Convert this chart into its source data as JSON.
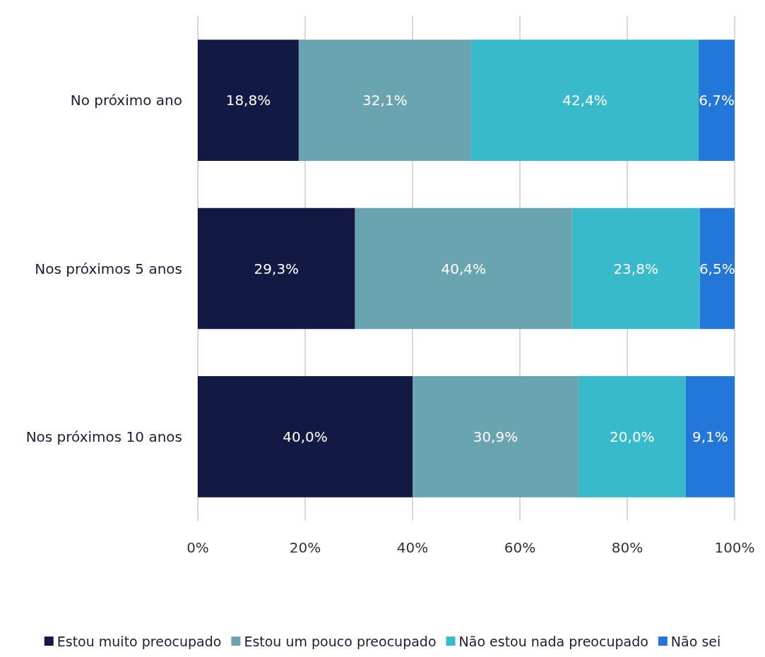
{
  "chart_data": {
    "type": "bar",
    "orientation": "horizontal",
    "stacked": true,
    "categories": [
      "No próximo ano",
      "Nos próximos 5 anos",
      "Nos próximos 10 anos"
    ],
    "series": [
      {
        "name": "Estou muito preocupado",
        "color": "#121a43",
        "values": [
          18.8,
          29.3,
          40.0
        ],
        "value_labels": [
          "18,8%",
          "29,3%",
          "40,0%"
        ]
      },
      {
        "name": "Estou um pouco preocupado",
        "color": "#6aa4b1",
        "values": [
          32.1,
          40.4,
          30.9
        ],
        "value_labels": [
          "32,1%",
          "40,4%",
          "30,9%"
        ]
      },
      {
        "name": "Não estou nada preocupado",
        "color": "#38bacb",
        "values": [
          42.4,
          23.8,
          20.0
        ],
        "value_labels": [
          "42,4%",
          "23,8%",
          "20,0%"
        ]
      },
      {
        "name": "Não sei",
        "color": "#2277d9",
        "values": [
          6.7,
          6.5,
          9.1
        ],
        "value_labels": [
          "6,7%",
          "6,5%",
          "9,1%"
        ]
      }
    ],
    "xlim": [
      0,
      100
    ],
    "xticks": [
      {
        "value": 0,
        "label": "0%"
      },
      {
        "value": 20,
        "label": "20%"
      },
      {
        "value": 40,
        "label": "40%"
      },
      {
        "value": 60,
        "label": "60%"
      },
      {
        "value": 80,
        "label": "80%"
      },
      {
        "value": 100,
        "label": "100%"
      }
    ],
    "grid": "x",
    "legend": "bottom"
  }
}
